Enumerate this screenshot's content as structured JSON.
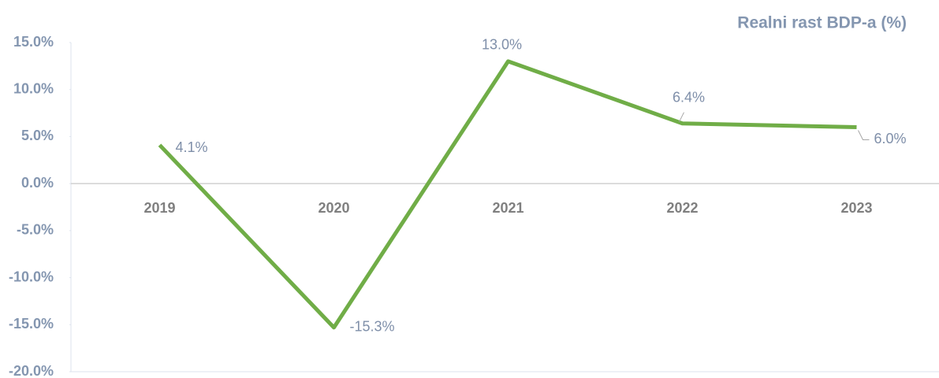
{
  "chart_data": {
    "type": "line",
    "title": "Realni rast BDP-a (%)",
    "categories": [
      "2019",
      "2020",
      "2021",
      "2022",
      "2023"
    ],
    "series": [
      {
        "name": "Realni rast BDP-a",
        "color": "#70ad47",
        "values": [
          4.1,
          -15.3,
          13.0,
          6.4,
          6.0
        ],
        "value_labels": [
          "4.1%",
          "-15.3%",
          "13.0%",
          "6.4%",
          "6.0%"
        ]
      }
    ],
    "ylim": [
      -20,
      15
    ],
    "yticks": [
      {
        "value": -20,
        "label": "-20.0%"
      },
      {
        "value": -15,
        "label": "-15.0%"
      },
      {
        "value": -10,
        "label": "-10.0%"
      },
      {
        "value": -5,
        "label": "-5.0%"
      },
      {
        "value": 0,
        "label": "0.0%"
      },
      {
        "value": 5,
        "label": "5.0%"
      },
      {
        "value": 10,
        "label": "10.0%"
      },
      {
        "value": 15,
        "label": "15.0%"
      }
    ],
    "grid": false
  }
}
